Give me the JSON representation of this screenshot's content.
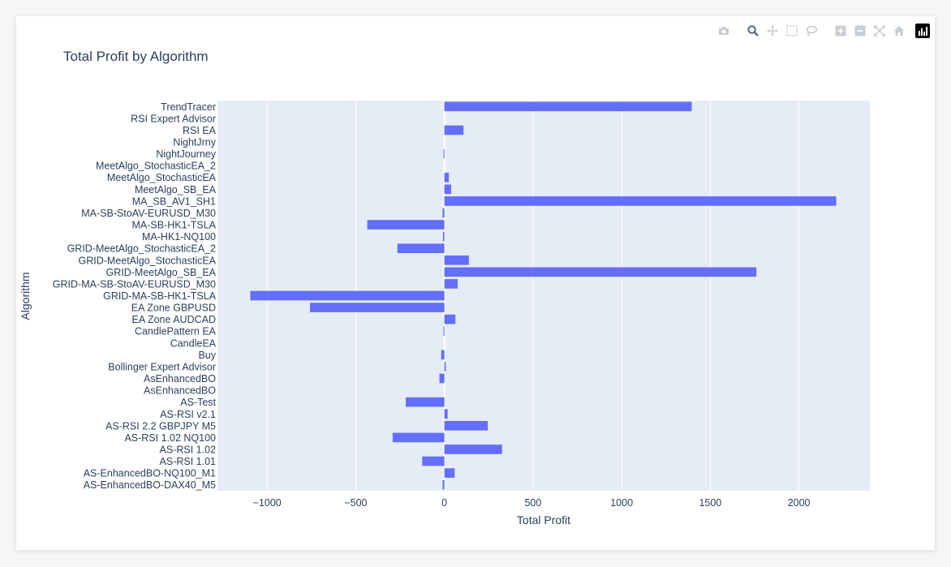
{
  "toolbar": {
    "items": [
      {
        "name": "camera-icon",
        "label": "Download plot as a png"
      },
      {
        "name": "zoom-icon",
        "label": "Zoom"
      },
      {
        "name": "pan-icon",
        "label": "Pan"
      },
      {
        "name": "box-select-icon",
        "label": "Box Select"
      },
      {
        "name": "lasso-select-icon",
        "label": "Lasso Select"
      },
      {
        "name": "zoom-in-icon",
        "label": "Zoom in"
      },
      {
        "name": "zoom-out-icon",
        "label": "Zoom out"
      },
      {
        "name": "autoscale-icon",
        "label": "Autoscale"
      },
      {
        "name": "reset-axes-icon",
        "label": "Reset axes"
      }
    ],
    "logo": "plotly-logo-icon"
  },
  "colors": {
    "bar": "#636efa",
    "plot_bg": "#e5ecf6",
    "grid": "#ffffff",
    "text": "#2a3f5f"
  },
  "chart_data": {
    "type": "bar",
    "orientation": "horizontal",
    "title": "Total Profit by Algorithm",
    "xlabel": "Total Profit",
    "ylabel": "Algorithm",
    "xlim": [
      -1280,
      2400
    ],
    "xticks": [
      -1000,
      -500,
      0,
      500,
      1000,
      1500,
      2000
    ],
    "xtick_labels": [
      "−1000",
      "−500",
      "0",
      "500",
      "1000",
      "1500",
      "2000"
    ],
    "grid": true,
    "categories": [
      "TrendTracer",
      "RSI Expert Advisor",
      "RSI EA",
      "NightJrny",
      "NightJourney",
      "MeetAlgo_StochasticEA_2",
      "MeetAlgo_StochasticEA",
      "MeetAlgo_SB_EA",
      "MA_SB_AV1_SH1",
      "MA-SB-StoAV-EURUSD_M30",
      "MA-SB-HK1-TSLA",
      "MA-HK1-NQ100",
      "GRID-MeetAlgo_StochasticEA_2",
      "GRID-MeetAlgo_StochasticEA",
      "GRID-MeetAlgo_SB_EA",
      "GRID-MA-SB-StoAV-EURUSD_M30",
      "GRID-MA-SB-HK1-TSLA",
      "EA Zone GBPUSD",
      "EA Zone AUDCAD",
      "CandlePattern EA",
      "CandleEA",
      "Buy",
      "Bollinger Expert Advisor",
      "AsEnhancedBO ",
      "AsEnhancedBO",
      "AS-Test",
      "AS-RSI v2.1",
      "AS-RSI 2.2 GBPJPY M5",
      "AS-RSI 1.02 NQ100",
      "AS-RSI 1.02",
      "AS-RSI 1.01",
      "AS-EnhancedBO-NQ100_M1",
      "AS-EnhancedBO-DAX40_M5"
    ],
    "values": [
      1395,
      0,
      108,
      0,
      -5,
      0,
      25,
      38,
      2210,
      -10,
      -435,
      -8,
      -265,
      138,
      1760,
      75,
      -1095,
      -758,
      62,
      -5,
      0,
      -18,
      8,
      -28,
      0,
      -218,
      18,
      245,
      -292,
      325,
      -125,
      58,
      -10
    ]
  }
}
